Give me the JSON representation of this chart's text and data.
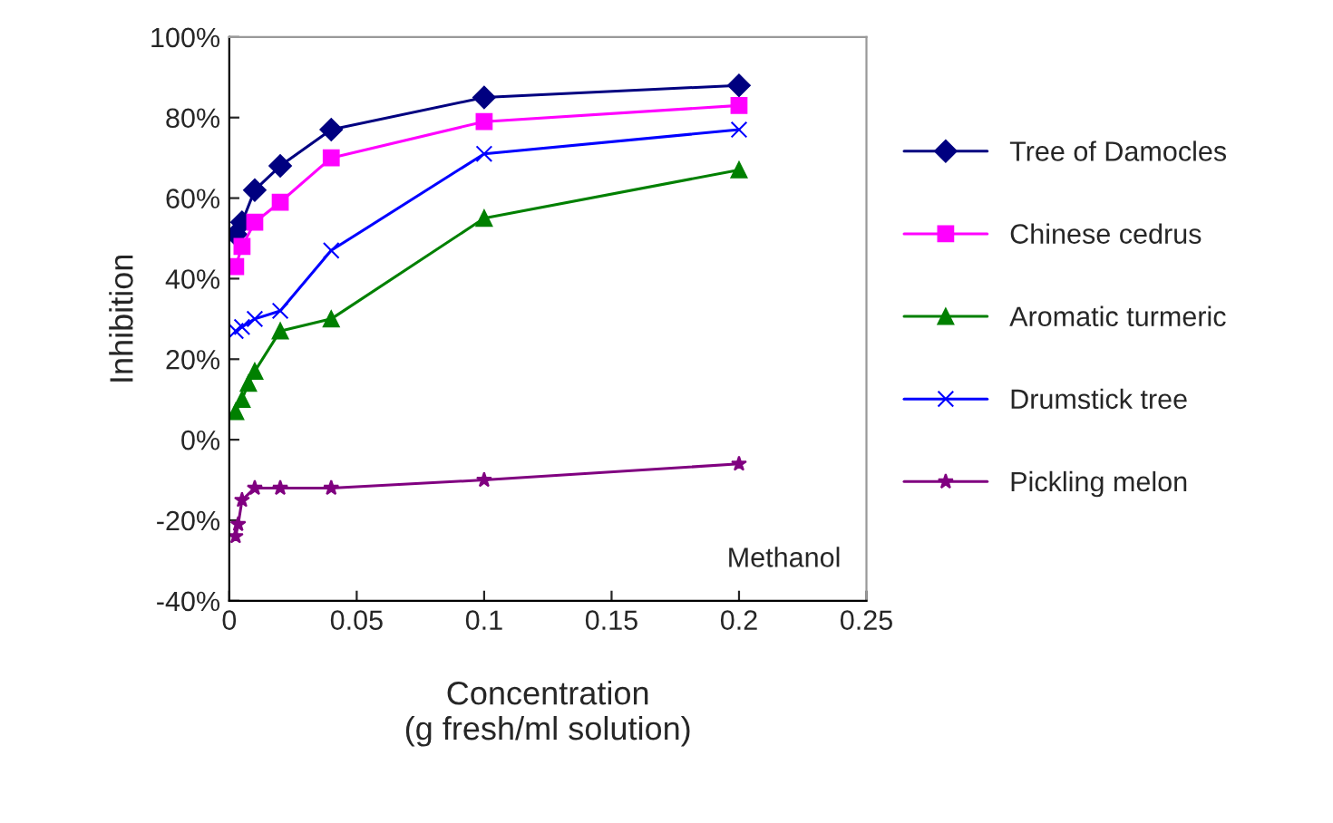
{
  "chart_data": {
    "type": "line",
    "xlabel": "Concentration\n(g fresh/ml solution)",
    "ylabel": "Inhibition",
    "xlim": [
      0,
      0.25
    ],
    "xticks": [
      0,
      0.05,
      0.1,
      0.15,
      0.2,
      0.25
    ],
    "ylim": [
      -40,
      100
    ],
    "yticks": [
      {
        "value": -40,
        "label": "-40%"
      },
      {
        "value": -20,
        "label": "-20%"
      },
      {
        "value": 0,
        "label": "0%"
      },
      {
        "value": 20,
        "label": "20%"
      },
      {
        "value": 40,
        "label": "40%"
      },
      {
        "value": 60,
        "label": "60%"
      },
      {
        "value": 80,
        "label": "80%"
      },
      {
        "value": 100,
        "label": "100%"
      }
    ],
    "grid": false,
    "legend": "right",
    "annotations": [
      "Methanol"
    ],
    "series": [
      {
        "name": "Tree of Damocles",
        "color": "#000080",
        "marker": "diamond",
        "x": [
          0.0025,
          0.005,
          0.01,
          0.02,
          0.04,
          0.1,
          0.2
        ],
        "values": [
          51,
          54,
          62,
          68,
          77,
          85,
          88
        ]
      },
      {
        "name": "Chinese cedrus",
        "color": "#ff00ff",
        "marker": "square",
        "x": [
          0.0025,
          0.005,
          0.01,
          0.02,
          0.04,
          0.1,
          0.2
        ],
        "values": [
          43,
          48,
          54,
          59,
          70,
          79,
          83
        ]
      },
      {
        "name": "Aromatic turmeric",
        "color": "#008000",
        "marker": "triangle",
        "x": [
          0.0025,
          0.005,
          0.0075,
          0.01,
          0.02,
          0.04,
          0.1,
          0.2
        ],
        "values": [
          7,
          10,
          14,
          17,
          27,
          30,
          55,
          67
        ]
      },
      {
        "name": "Drumstick tree",
        "color": "#0000ff",
        "marker": "cross",
        "x": [
          0.0025,
          0.005,
          0.01,
          0.02,
          0.04,
          0.1,
          0.2
        ],
        "values": [
          27,
          28,
          30,
          32,
          47,
          71,
          77
        ]
      },
      {
        "name": "Pickling melon",
        "color": "#800080",
        "marker": "star",
        "x": [
          0.0025,
          0.0035,
          0.005,
          0.01,
          0.02,
          0.04,
          0.1,
          0.2
        ],
        "values": [
          -24,
          -21,
          -15,
          -12,
          -12,
          -12,
          -10,
          -6
        ]
      }
    ]
  }
}
